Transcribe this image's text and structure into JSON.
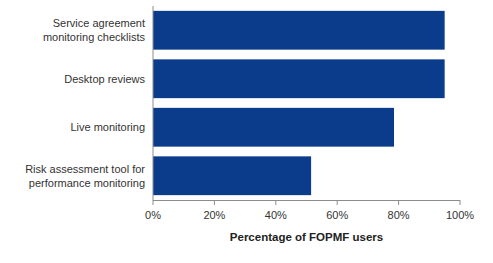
{
  "chart_data": {
    "type": "bar",
    "orientation": "horizontal",
    "categories": [
      "Service agreement monitoring checklists",
      "Desktop reviews",
      "Live monitoring",
      "Risk assessment tool for performance monitoring"
    ],
    "values": [
      95,
      95,
      78.5,
      51.5
    ],
    "color": "#0b3c8c",
    "xlabel": "Percentage of FOPMF users",
    "xlim": [
      0,
      100
    ],
    "xticks": [
      {
        "value": 0,
        "label": "0%"
      },
      {
        "value": 20,
        "label": "20%"
      },
      {
        "value": 40,
        "label": "40%"
      },
      {
        "value": 60,
        "label": "60%"
      },
      {
        "value": 80,
        "label": "80%"
      },
      {
        "value": 100,
        "label": "100%"
      }
    ],
    "grid": false
  }
}
